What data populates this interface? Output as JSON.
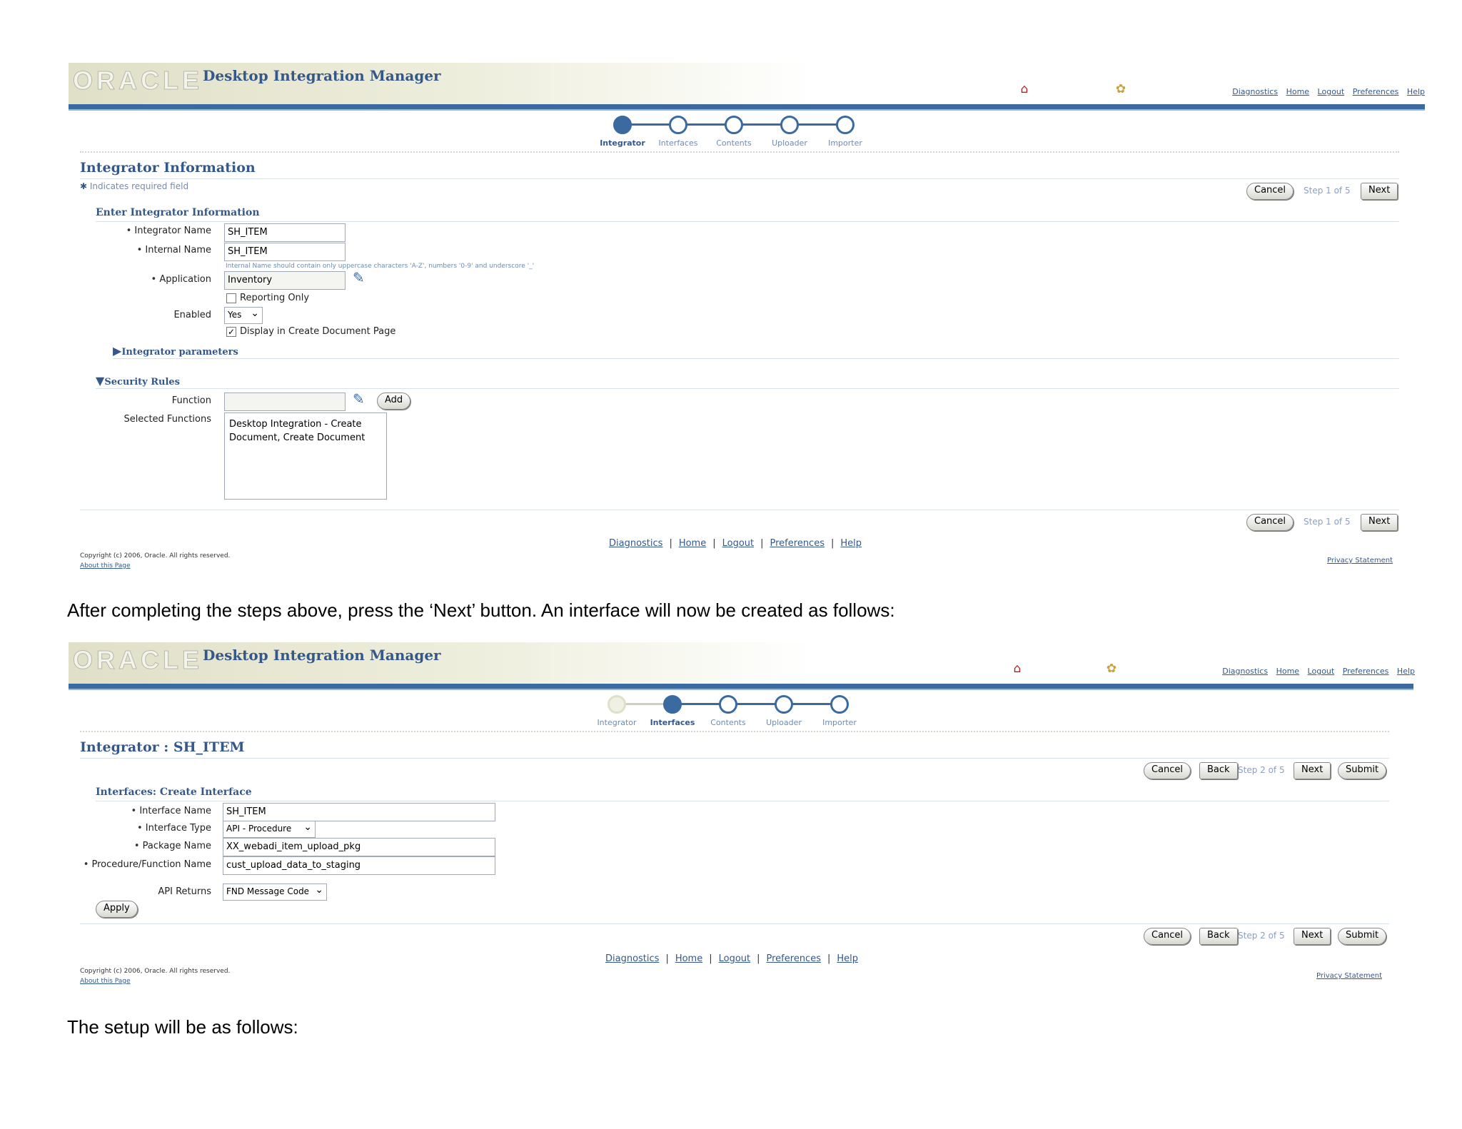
{
  "app": {
    "logo_text": "ORACLE",
    "name": "Desktop Integration Manager"
  },
  "global_links": [
    "Diagnostics",
    "Home",
    "Logout",
    "Preferences",
    "Help"
  ],
  "screen1": {
    "train": [
      "Integrator",
      "Interfaces",
      "Contents",
      "Uploader",
      "Importer"
    ],
    "title": "Integrator Information",
    "required_note": "Indicates required field",
    "cancel": "Cancel",
    "step": "Step 1 of 5",
    "next": "Next",
    "section": "Enter Integrator Information",
    "fields": {
      "integrator_name_label": "Integrator Name",
      "integrator_name_value": "SH_ITEM",
      "internal_name_label": "Internal Name",
      "internal_name_value": "SH_ITEM",
      "internal_name_hint": "Internal Name should contain only uppercase characters 'A-Z', numbers '0-9' and underscore '_'",
      "application_label": "Application",
      "application_value": "Inventory",
      "reporting_only_label": "Reporting Only",
      "enabled_label": "Enabled",
      "enabled_value": "Yes",
      "display_label": "Display in Create Document Page"
    },
    "integrator_parameters": "Integrator parameters",
    "security_rules": "Security Rules",
    "function_label": "Function",
    "add": "Add",
    "selected_functions_label": "Selected Functions",
    "selected_functions_value": "Desktop Integration - Create Document, Create Document",
    "copyright": "Copyright (c) 2006, Oracle. All rights reserved.",
    "about": "About this Page",
    "privacy": "Privacy Statement"
  },
  "text1": "After completing the steps above, press the ‘Next’ button. An interface will now be created as follows:",
  "screen2": {
    "train": [
      "Integrator",
      "Interfaces",
      "Contents",
      "Uploader",
      "Importer"
    ],
    "title": "Integrator : SH_ITEM",
    "cancel": "Cancel",
    "back": "Back",
    "step": "Step 2 of 5",
    "next": "Next",
    "submit": "Submit",
    "section": "Interfaces: Create Interface",
    "fields": {
      "interface_name_label": "Interface Name",
      "interface_name_value": "SH_ITEM",
      "interface_type_label": "Interface Type",
      "interface_type_value": "API - Procedure",
      "package_name_label": "Package Name",
      "package_name_value": "XX_webadi_item_upload_pkg",
      "procedure_label": "Procedure/Function Name",
      "procedure_value": "cust_upload_data_to_staging",
      "api_returns_label": "API Returns",
      "api_returns_value": "FND Message Code"
    },
    "apply": "Apply",
    "copyright": "Copyright (c) 2006, Oracle. All rights reserved.",
    "about": "About this Page",
    "privacy": "Privacy Statement"
  },
  "text2": "The setup will be as follows:"
}
